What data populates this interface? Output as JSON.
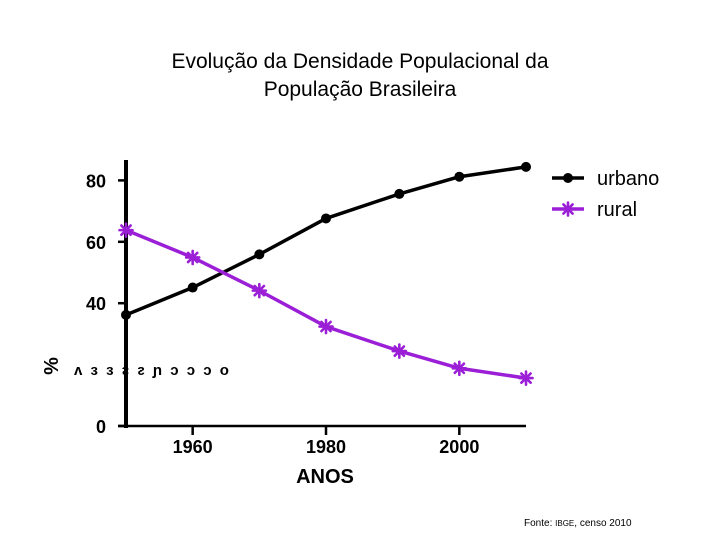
{
  "title_lines": [
    "Evolução da Densidade Populacional da",
    "População Brasileira"
  ],
  "source": {
    "prefix": "Fonte: ",
    "org": "IBGE",
    "suffix": ", censo 2010"
  },
  "chart_data": {
    "type": "line",
    "title": "Evolução da Densidade Populacional da População Brasileira",
    "xlabel": "ANOS",
    "ylabel": "%",
    "ylabel_fragment": "ᴧ ɜ ɜ ᴤ ᴤ ɲ ɔ ɔ ɔ o",
    "x_ticks": [
      1960,
      1980,
      2000
    ],
    "y_ticks": [
      0,
      40,
      60,
      80
    ],
    "y_tick_labels": [
      "0",
      "40",
      "60",
      "80"
    ],
    "x_tick_labels": [
      "1960",
      "1980",
      "2000"
    ],
    "xlim": [
      1950,
      2010
    ],
    "ylim": [
      0,
      84
    ],
    "grid": false,
    "legend_position": "top-right",
    "series": [
      {
        "name": "urbano",
        "color": "#000000",
        "marker": "circle",
        "x": [
          1950,
          1960,
          1970,
          1980,
          1991,
          2000,
          2010
        ],
        "y": [
          36.2,
          45.1,
          55.9,
          67.6,
          75.6,
          81.2,
          84.4
        ]
      },
      {
        "name": "rural",
        "color": "#9b1fd6",
        "marker": "asterisk",
        "x": [
          1950,
          1960,
          1970,
          1980,
          1991,
          2000,
          2010
        ],
        "y": [
          63.8,
          54.9,
          44.1,
          32.4,
          24.4,
          18.8,
          15.6
        ]
      }
    ]
  }
}
